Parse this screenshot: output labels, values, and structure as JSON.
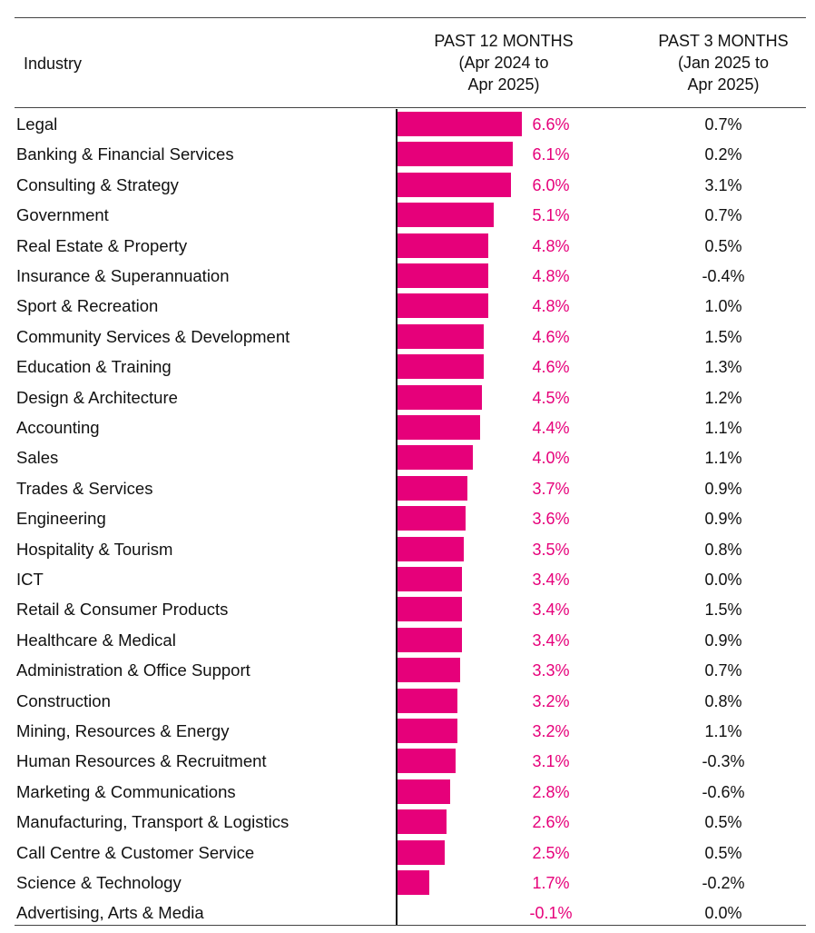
{
  "chart_data": {
    "type": "bar",
    "orientation": "horizontal",
    "title": "",
    "columns": {
      "industry": "Industry",
      "past12": [
        "PAST 12 MONTHS",
        "(Apr 2024 to",
        "Apr 2025)"
      ],
      "past3": [
        "PAST 3 MONTHS",
        "(Jan 2025 to",
        "Apr 2025)"
      ]
    },
    "bar_color": "#e6007a",
    "categories": [
      "Legal",
      "Banking & Financial Services",
      "Consulting & Strategy",
      "Government",
      "Real Estate & Property",
      "Insurance & Superannuation",
      "Sport & Recreation",
      "Community Services & Development",
      "Education & Training",
      "Design & Architecture",
      "Accounting",
      "Sales",
      "Trades & Services",
      "Engineering",
      "Hospitality & Tourism",
      "ICT",
      "Retail & Consumer Products",
      "Healthcare & Medical",
      "Administration & Office Support",
      "Construction",
      "Mining, Resources & Energy",
      "Human Resources & Recruitment",
      "Marketing & Communications",
      "Manufacturing, Transport & Logistics",
      "Call Centre & Customer Service",
      "Science & Technology",
      "Advertising, Arts & Media"
    ],
    "series": [
      {
        "name": "Past 12 months (Apr 2024 to Apr 2025)",
        "values": [
          6.6,
          6.1,
          6.0,
          5.1,
          4.8,
          4.8,
          4.8,
          4.6,
          4.6,
          4.5,
          4.4,
          4.0,
          3.7,
          3.6,
          3.5,
          3.4,
          3.4,
          3.4,
          3.3,
          3.2,
          3.2,
          3.1,
          2.8,
          2.6,
          2.5,
          1.7,
          -0.1
        ],
        "labels": [
          "6.6%",
          "6.1%",
          "6.0%",
          "5.1%",
          "4.8%",
          "4.8%",
          "4.8%",
          "4.6%",
          "4.6%",
          "4.5%",
          "4.4%",
          "4.0%",
          "3.7%",
          "3.6%",
          "3.5%",
          "3.4%",
          "3.4%",
          "3.4%",
          "3.3%",
          "3.2%",
          "3.2%",
          "3.1%",
          "2.8%",
          "2.6%",
          "2.5%",
          "1.7%",
          "-0.1%"
        ]
      },
      {
        "name": "Past 3 months (Jan 2025 to Apr 2025)",
        "values": [
          0.7,
          0.2,
          3.1,
          0.7,
          0.5,
          -0.4,
          1.0,
          1.5,
          1.3,
          1.2,
          1.1,
          1.1,
          0.9,
          0.9,
          0.8,
          0.0,
          1.5,
          0.9,
          0.7,
          0.8,
          1.1,
          -0.3,
          -0.6,
          0.5,
          0.5,
          -0.2,
          0.0
        ],
        "labels": [
          "0.7%",
          "0.2%",
          "3.1%",
          "0.7%",
          "0.5%",
          "-0.4%",
          "1.0%",
          "1.5%",
          "1.3%",
          "1.2%",
          "1.1%",
          "1.1%",
          "0.9%",
          "0.9%",
          "0.8%",
          "0.0%",
          "1.5%",
          "0.9%",
          "0.7%",
          "0.8%",
          "1.1%",
          "-0.3%",
          "-0.6%",
          "0.5%",
          "0.5%",
          "-0.2%",
          "0.0%"
        ]
      }
    ],
    "xlim": [
      0,
      6.6
    ],
    "grid": false,
    "legend": "none"
  }
}
